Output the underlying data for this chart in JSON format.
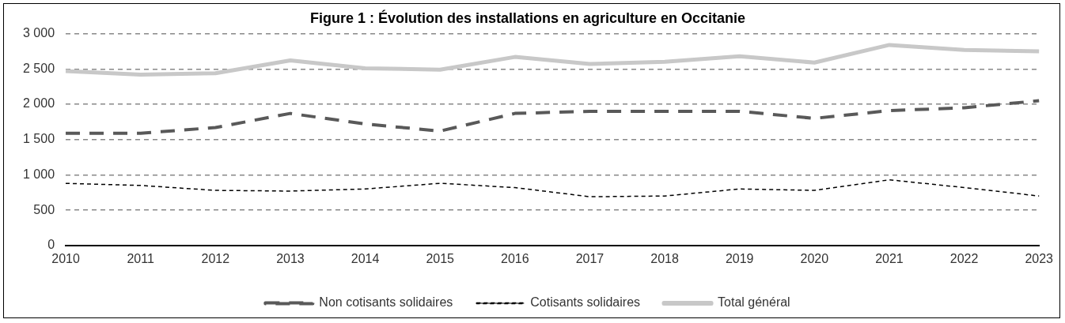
{
  "chart_data": {
    "type": "line",
    "title": "Figure 1 : Évolution des installations en agriculture en Occitanie",
    "categories": [
      "2010",
      "2011",
      "2012",
      "2013",
      "2014",
      "2015",
      "2016",
      "2017",
      "2018",
      "2019",
      "2020",
      "2021",
      "2022",
      "2023"
    ],
    "series": [
      {
        "name": "Non cotisants solidaires",
        "color": "#595959",
        "line_style": "dashed",
        "values": [
          1590,
          1590,
          1670,
          1870,
          1720,
          1620,
          1870,
          1900,
          1900,
          1900,
          1800,
          1910,
          1950,
          2050
        ]
      },
      {
        "name": "Cotisants solidaires",
        "color": "#000000",
        "line_style": "dashed",
        "values": [
          880,
          850,
          780,
          770,
          800,
          880,
          820,
          690,
          700,
          800,
          780,
          930,
          820,
          700
        ]
      },
      {
        "name": "Total général",
        "color": "#c8c8c8",
        "line_style": "solid",
        "values": [
          2470,
          2420,
          2440,
          2620,
          2510,
          2490,
          2670,
          2570,
          2600,
          2680,
          2590,
          2840,
          2770,
          2750
        ]
      }
    ],
    "ylim": [
      0,
      3000
    ],
    "yticks": [
      0,
      500,
      {
        "value": 1000,
        "label": "1 000"
      },
      {
        "value": 1500,
        "label": "1 500"
      },
      {
        "value": 2000,
        "label": "2 000"
      },
      {
        "value": 2500,
        "label": "2 500"
      },
      {
        "value": 3000,
        "label": "3 000"
      }
    ],
    "grid": "y",
    "legend": "bottom",
    "marker": "none"
  }
}
